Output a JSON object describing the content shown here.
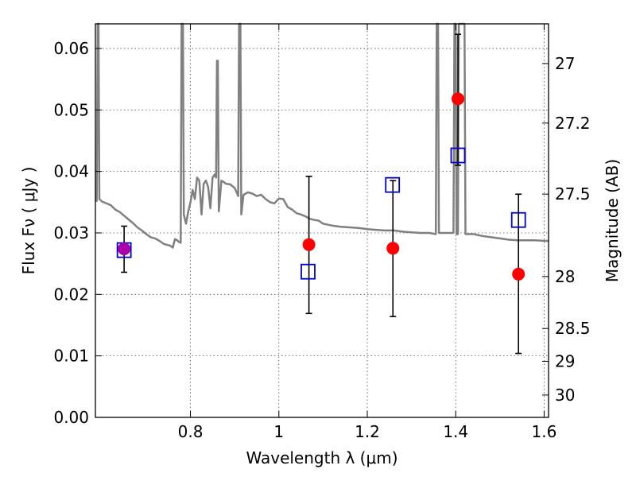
{
  "chart_data": {
    "type": "scatter",
    "xlabel": "Wavelength  λ (μm)",
    "ylabel": "Flux  Fν  ( μJy )",
    "ylabel_right": "Magnitude (AB)",
    "xlim": [
      0.585,
      1.61
    ],
    "ylim": [
      0.0,
      0.064
    ],
    "grid": true,
    "x_ticks": [
      {
        "value": 0.8,
        "label": "0.8"
      },
      {
        "value": 1.0,
        "label": "1"
      },
      {
        "value": 1.2,
        "label": "1.2"
      },
      {
        "value": 1.4,
        "label": "1.4"
      },
      {
        "value": 1.6,
        "label": "1.6"
      }
    ],
    "y_ticks": [
      {
        "value": 0.0,
        "label": "0.00"
      },
      {
        "value": 0.01,
        "label": "0.01"
      },
      {
        "value": 0.02,
        "label": "0.02"
      },
      {
        "value": 0.03,
        "label": "0.03"
      },
      {
        "value": 0.04,
        "label": "0.04"
      },
      {
        "value": 0.05,
        "label": "0.05"
      },
      {
        "value": 0.06,
        "label": "0.06"
      }
    ],
    "magnitude_ticks": [
      {
        "mag": 27,
        "label": "27"
      },
      {
        "mag": 27.2,
        "label": "27.2"
      },
      {
        "mag": 27.5,
        "label": "27.5"
      },
      {
        "mag": 28,
        "label": "28"
      },
      {
        "mag": 28.5,
        "label": "28.5"
      },
      {
        "mag": 29,
        "label": "29"
      },
      {
        "mag": 30,
        "label": "30"
      }
    ],
    "series": [
      {
        "marker": "circle",
        "color": "#ff0000",
        "points": [
          {
            "x": 0.65,
            "y": 0.0274,
            "yerr_low": 0.0236,
            "yerr_high": 0.0311,
            "color": "#aa00aa"
          },
          {
            "x": 1.068,
            "y": 0.0281,
            "yerr_low": 0.0169,
            "yerr_high": 0.0392
          },
          {
            "x": 1.258,
            "y": 0.0275,
            "yerr_low": 0.0164,
            "yerr_high": 0.0385
          },
          {
            "x": 1.405,
            "y": 0.0518,
            "yerr_low": 0.041,
            "yerr_high": 0.0623
          },
          {
            "x": 1.542,
            "y": 0.0233,
            "yerr_low": 0.0104,
            "yerr_high": 0.0363
          }
        ]
      },
      {
        "marker": "open-square",
        "color": "#0000cc",
        "points": [
          {
            "x": 0.65,
            "y": 0.0272
          },
          {
            "x": 1.066,
            "y": 0.0237
          },
          {
            "x": 1.257,
            "y": 0.0378
          },
          {
            "x": 1.405,
            "y": 0.0426
          },
          {
            "x": 1.542,
            "y": 0.0321
          }
        ]
      },
      {
        "marker": "line",
        "color": "#808080",
        "points": [
          [
            0.585,
            0.0352
          ],
          [
            0.588,
            0.0352
          ],
          [
            0.59,
            0.064
          ],
          [
            0.592,
            0.064
          ],
          [
            0.594,
            0.0355
          ],
          [
            0.6,
            0.0351
          ],
          [
            0.61,
            0.0348
          ],
          [
            0.62,
            0.0345
          ],
          [
            0.63,
            0.0338
          ],
          [
            0.64,
            0.0334
          ],
          [
            0.65,
            0.0328
          ],
          [
            0.66,
            0.0322
          ],
          [
            0.67,
            0.0316
          ],
          [
            0.68,
            0.0309
          ],
          [
            0.69,
            0.0304
          ],
          [
            0.7,
            0.0298
          ],
          [
            0.71,
            0.0293
          ],
          [
            0.72,
            0.0291
          ],
          [
            0.73,
            0.0287
          ],
          [
            0.74,
            0.0282
          ],
          [
            0.75,
            0.028
          ],
          [
            0.755,
            0.0279
          ],
          [
            0.76,
            0.0276
          ],
          [
            0.765,
            0.029
          ],
          [
            0.77,
            0.0288
          ],
          [
            0.775,
            0.0285
          ],
          [
            0.778,
            0.0284
          ],
          [
            0.78,
            0.064
          ],
          [
            0.783,
            0.064
          ],
          [
            0.785,
            0.033
          ],
          [
            0.79,
            0.0315
          ],
          [
            0.795,
            0.0335
          ],
          [
            0.8,
            0.035
          ],
          [
            0.805,
            0.037
          ],
          [
            0.81,
            0.0355
          ],
          [
            0.815,
            0.039
          ],
          [
            0.82,
            0.0385
          ],
          [
            0.825,
            0.033
          ],
          [
            0.83,
            0.038
          ],
          [
            0.835,
            0.0385
          ],
          [
            0.84,
            0.0375
          ],
          [
            0.845,
            0.034
          ],
          [
            0.85,
            0.039
          ],
          [
            0.855,
            0.0395
          ],
          [
            0.858,
            0.039
          ],
          [
            0.86,
            0.058
          ],
          [
            0.862,
            0.058
          ],
          [
            0.864,
            0.0335
          ],
          [
            0.87,
            0.0385
          ],
          [
            0.875,
            0.0383
          ],
          [
            0.88,
            0.038
          ],
          [
            0.89,
            0.0379
          ],
          [
            0.9,
            0.0373
          ],
          [
            0.905,
            0.0365
          ],
          [
            0.908,
            0.036
          ],
          [
            0.91,
            0.064
          ],
          [
            0.913,
            0.064
          ],
          [
            0.915,
            0.033
          ],
          [
            0.92,
            0.0362
          ],
          [
            0.93,
            0.0366
          ],
          [
            0.94,
            0.0364
          ],
          [
            0.95,
            0.036
          ],
          [
            0.96,
            0.0362
          ],
          [
            0.97,
            0.0355
          ],
          [
            0.98,
            0.035
          ],
          [
            0.99,
            0.0348
          ],
          [
            1.0,
            0.0356
          ],
          [
            1.01,
            0.0355
          ],
          [
            1.02,
            0.0342
          ],
          [
            1.03,
            0.0338
          ],
          [
            1.035,
            0.0335
          ],
          [
            1.04,
            0.0332
          ],
          [
            1.05,
            0.033
          ],
          [
            1.06,
            0.0327
          ],
          [
            1.07,
            0.0323
          ],
          [
            1.08,
            0.0321
          ],
          [
            1.09,
            0.032
          ],
          [
            1.1,
            0.0315
          ],
          [
            1.12,
            0.0312
          ],
          [
            1.14,
            0.031
          ],
          [
            1.16,
            0.0309
          ],
          [
            1.18,
            0.0308
          ],
          [
            1.2,
            0.0306
          ],
          [
            1.22,
            0.0305
          ],
          [
            1.24,
            0.0304
          ],
          [
            1.26,
            0.0304
          ],
          [
            1.28,
            0.0302
          ],
          [
            1.3,
            0.0301
          ],
          [
            1.32,
            0.03
          ],
          [
            1.34,
            0.03
          ],
          [
            1.355,
            0.0298
          ],
          [
            1.357,
            0.064
          ],
          [
            1.36,
            0.064
          ],
          [
            1.362,
            0.03
          ],
          [
            1.38,
            0.03
          ],
          [
            1.395,
            0.03
          ],
          [
            1.397,
            0.064
          ],
          [
            1.4,
            0.064
          ],
          [
            1.402,
            0.0298
          ],
          [
            1.405,
            0.0298
          ],
          [
            1.407,
            0.064
          ],
          [
            1.42,
            0.064
          ],
          [
            1.422,
            0.0298
          ],
          [
            1.44,
            0.0298
          ],
          [
            1.46,
            0.0295
          ],
          [
            1.48,
            0.0293
          ],
          [
            1.5,
            0.0291
          ],
          [
            1.52,
            0.0289
          ],
          [
            1.54,
            0.0288
          ],
          [
            1.56,
            0.0288
          ],
          [
            1.58,
            0.0288
          ],
          [
            1.6,
            0.0287
          ],
          [
            1.61,
            0.0287
          ]
        ]
      }
    ]
  }
}
